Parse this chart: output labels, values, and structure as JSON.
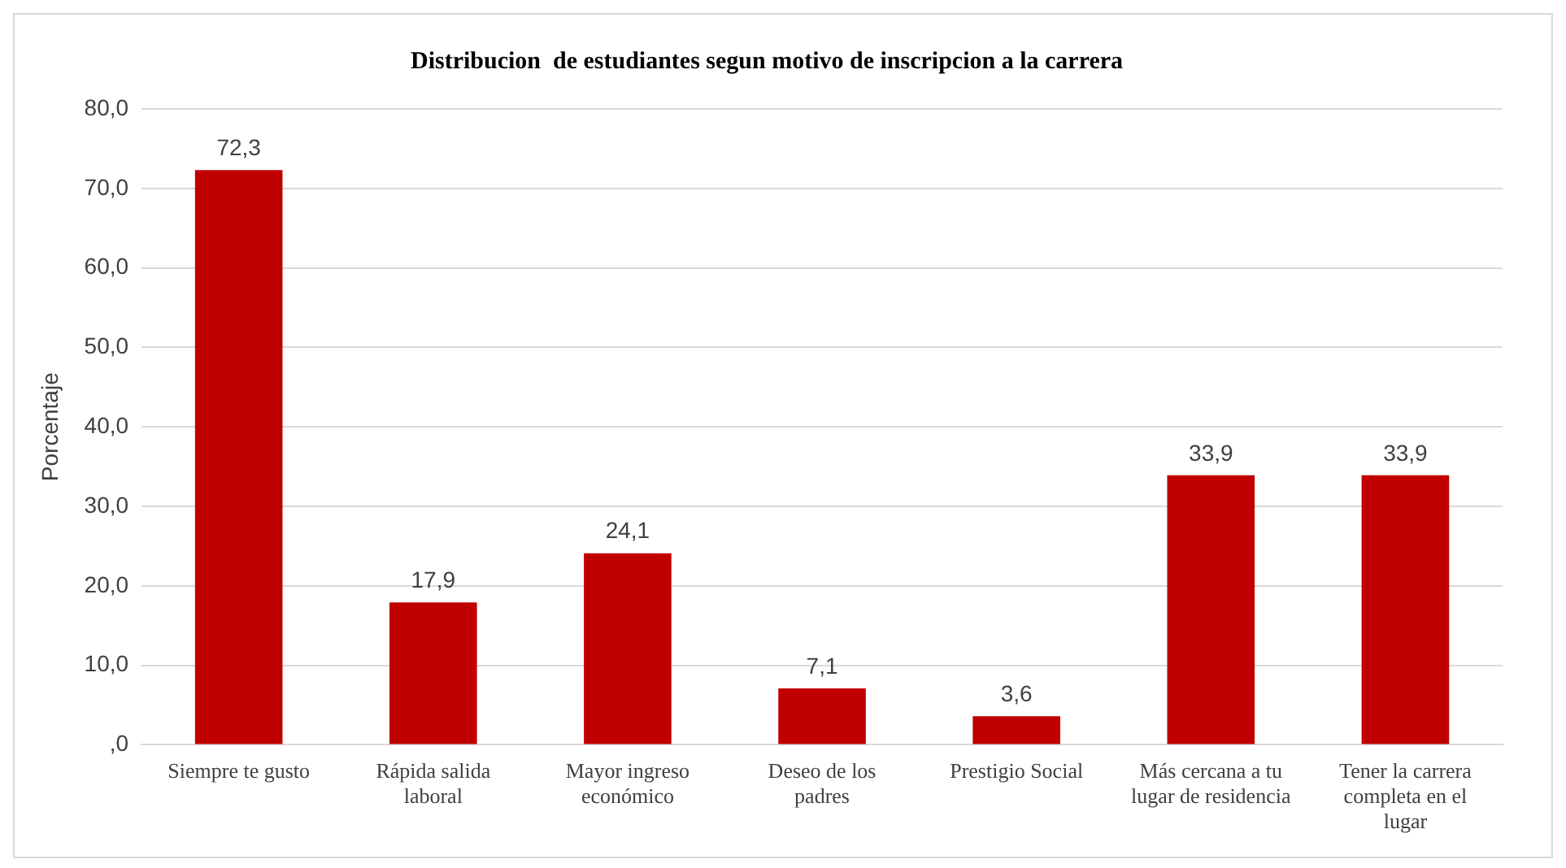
{
  "chart_data": {
    "type": "bar",
    "title": "Distribucion  de estudiantes segun motivo de inscripcion a la carrera",
    "ylabel": "Porcentaje",
    "categories": [
      "Siempre te gusto",
      "Rápida salida laboral",
      "Mayor ingreso económico",
      "Deseo de los padres",
      "Prestigio Social",
      "Más cercana a tu lugar de residencia",
      "Tener la carrera completa en el lugar"
    ],
    "values": [
      72.3,
      17.9,
      24.1,
      7.1,
      3.6,
      33.9,
      33.9
    ],
    "value_labels": [
      "72,3",
      "17,9",
      "24,1",
      "7,1",
      "3,6",
      "33,9",
      "33,9"
    ],
    "color": "#c00000",
    "ylim": [
      0,
      80
    ],
    "yticks": [
      {
        "value": 0,
        "label": ",0"
      },
      {
        "value": 10,
        "label": "10,0"
      },
      {
        "value": 20,
        "label": "20,0"
      },
      {
        "value": 30,
        "label": "30,0"
      },
      {
        "value": 40,
        "label": "40,0"
      },
      {
        "value": 50,
        "label": "50,0"
      },
      {
        "value": 60,
        "label": "60,0"
      },
      {
        "value": 70,
        "label": "70,0"
      },
      {
        "value": 80,
        "label": "80,0"
      }
    ],
    "grid": "y",
    "legend": false
  }
}
